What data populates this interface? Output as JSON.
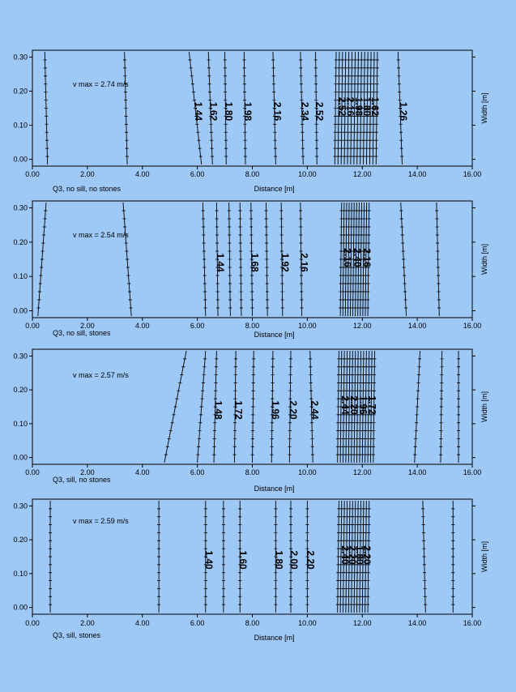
{
  "page_background": "#9ec8f6",
  "chart_data": [
    {
      "type": "contour",
      "caption": "Q3, no sill, no stones",
      "vmax_label": "v max = 2.74 m/s",
      "xlabel": "Distance [m]",
      "ylabel": "Width [m]",
      "xlim": [
        0,
        16
      ],
      "ylim": [
        -0.02,
        0.32
      ],
      "x_ticks": [
        "0.00",
        "2.00",
        "4.00",
        "6.00",
        "8.00",
        "10.00",
        "12.00",
        "14.00",
        "16.00"
      ],
      "y_ticks": [
        "0.00",
        "0.10",
        "0.20",
        "0.30"
      ],
      "contours": [
        {
          "x_bottom": 0.55,
          "x_top": 0.45
        },
        {
          "x_bottom": 3.45,
          "x_top": 3.35
        },
        {
          "x_bottom": 6.15,
          "x_top": 5.7,
          "label": "1.44"
        },
        {
          "x_bottom": 6.55,
          "x_top": 6.4,
          "label": "1.62"
        },
        {
          "x_bottom": 7.05,
          "x_top": 7.0,
          "label": "1.80"
        },
        {
          "x_bottom": 7.75,
          "x_top": 7.7,
          "label": "1.98"
        },
        {
          "x_bottom": 8.85,
          "x_top": 8.75,
          "label": "2.16"
        },
        {
          "x_bottom": 9.85,
          "x_top": 9.75,
          "label": "2.34"
        },
        {
          "x_bottom": 10.35,
          "x_top": 10.3,
          "label": "2.52"
        },
        {
          "x_bottom": 13.45,
          "x_top": 13.3,
          "label": "1.26"
        }
      ],
      "dense_band": {
        "x_from": 11.0,
        "x_to": 12.5,
        "count": 14,
        "labels": [
          "2.52",
          "2.16",
          "1.98",
          "1.80",
          "1.62"
        ]
      }
    },
    {
      "type": "contour",
      "caption": "Q3, no sill, stones",
      "vmax_label": "v max = 2.54 m/s",
      "xlabel": "Distance [m]",
      "ylabel": "Width [m]",
      "xlim": [
        0,
        16
      ],
      "ylim": [
        -0.02,
        0.32
      ],
      "x_ticks": [
        "0.00",
        "2.00",
        "4.00",
        "6.00",
        "8.00",
        "10.00",
        "12.00",
        "14.00",
        "16.00"
      ],
      "y_ticks": [
        "0.00",
        "0.10",
        "0.20",
        "0.30"
      ],
      "contours": [
        {
          "x_bottom": 0.2,
          "x_top": 0.5
        },
        {
          "x_bottom": 3.6,
          "x_top": 3.3
        },
        {
          "x_bottom": 6.3,
          "x_top": 6.2
        },
        {
          "x_bottom": 6.75,
          "x_top": 6.7,
          "label": "1.44"
        },
        {
          "x_bottom": 7.2,
          "x_top": 7.15
        },
        {
          "x_bottom": 7.6,
          "x_top": 7.55
        },
        {
          "x_bottom": 8.0,
          "x_top": 7.95,
          "label": "1.68"
        },
        {
          "x_bottom": 8.55,
          "x_top": 8.5
        },
        {
          "x_bottom": 9.1,
          "x_top": 9.05,
          "label": "1.92"
        },
        {
          "x_bottom": 9.8,
          "x_top": 9.75,
          "label": "2.16"
        },
        {
          "x_bottom": 13.6,
          "x_top": 13.4
        },
        {
          "x_bottom": 14.8,
          "x_top": 14.7
        }
      ],
      "dense_band": {
        "x_from": 11.2,
        "x_to": 12.2,
        "count": 12,
        "labels": [
          "2.16",
          "2.40",
          "2.16"
        ]
      }
    },
    {
      "type": "contour",
      "caption": "Q3, sill, no stones",
      "vmax_label": "v max = 2.57 m/s",
      "xlabel": "Distance [m]",
      "ylabel": "Width [m]",
      "xlim": [
        0,
        16
      ],
      "ylim": [
        -0.02,
        0.32
      ],
      "x_ticks": [
        "0.00",
        "2.00",
        "4.00",
        "6.00",
        "8.00",
        "10.00",
        "12.00",
        "14.00",
        "16.00"
      ],
      "y_ticks": [
        "0.00",
        "0.10",
        "0.20",
        "0.30"
      ],
      "contours": [
        {
          "x_bottom": 4.8,
          "x_top": 5.6
        },
        {
          "x_bottom": 6.0,
          "x_top": 6.3
        },
        {
          "x_bottom": 6.6,
          "x_top": 6.7,
          "label": "1.48"
        },
        {
          "x_bottom": 7.35,
          "x_top": 7.4,
          "label": "1.72"
        },
        {
          "x_bottom": 8.0,
          "x_top": 8.05
        },
        {
          "x_bottom": 8.7,
          "x_top": 8.75,
          "label": "1.96"
        },
        {
          "x_bottom": 9.35,
          "x_top": 9.4,
          "label": "2.20"
        },
        {
          "x_bottom": 10.2,
          "x_top": 10.1,
          "label": "2.44"
        },
        {
          "x_bottom": 13.9,
          "x_top": 14.1
        },
        {
          "x_bottom": 14.85,
          "x_top": 14.9
        },
        {
          "x_bottom": 15.5,
          "x_top": 15.5
        }
      ],
      "dense_band": {
        "x_from": 11.1,
        "x_to": 12.4,
        "count": 14,
        "labels": [
          "2.44",
          "2.20",
          "1.96",
          "1.72"
        ]
      }
    },
    {
      "type": "contour",
      "caption": "Q3, sill, stones",
      "vmax_label": "v max = 2.59 m/s",
      "xlabel": "Distance [m]",
      "ylabel": "Width [m]",
      "xlim": [
        0,
        16
      ],
      "ylim": [
        -0.02,
        0.32
      ],
      "x_ticks": [
        "0.00",
        "2.00",
        "4.00",
        "6.00",
        "8.00",
        "10.00",
        "12.00",
        "14.00",
        "16.00"
      ],
      "y_ticks": [
        "0.00",
        "0.10",
        "0.20",
        "0.30"
      ],
      "contours": [
        {
          "x_bottom": 0.65,
          "x_top": 0.65
        },
        {
          "x_bottom": 4.6,
          "x_top": 4.6
        },
        {
          "x_bottom": 6.3,
          "x_top": 6.3,
          "label": "1.40"
        },
        {
          "x_bottom": 6.95,
          "x_top": 6.95
        },
        {
          "x_bottom": 7.55,
          "x_top": 7.55,
          "label": "1.60"
        },
        {
          "x_bottom": 8.85,
          "x_top": 8.85,
          "label": "1.80"
        },
        {
          "x_bottom": 9.4,
          "x_top": 9.4,
          "label": "2.00"
        },
        {
          "x_bottom": 10.0,
          "x_top": 10.0,
          "label": "2.20"
        },
        {
          "x_bottom": 14.3,
          "x_top": 14.2
        },
        {
          "x_bottom": 15.3,
          "x_top": 15.3
        }
      ],
      "dense_band": {
        "x_from": 11.1,
        "x_to": 12.2,
        "count": 12,
        "labels": [
          "2.40",
          "2.20",
          "1.80",
          "2.20"
        ]
      }
    }
  ]
}
